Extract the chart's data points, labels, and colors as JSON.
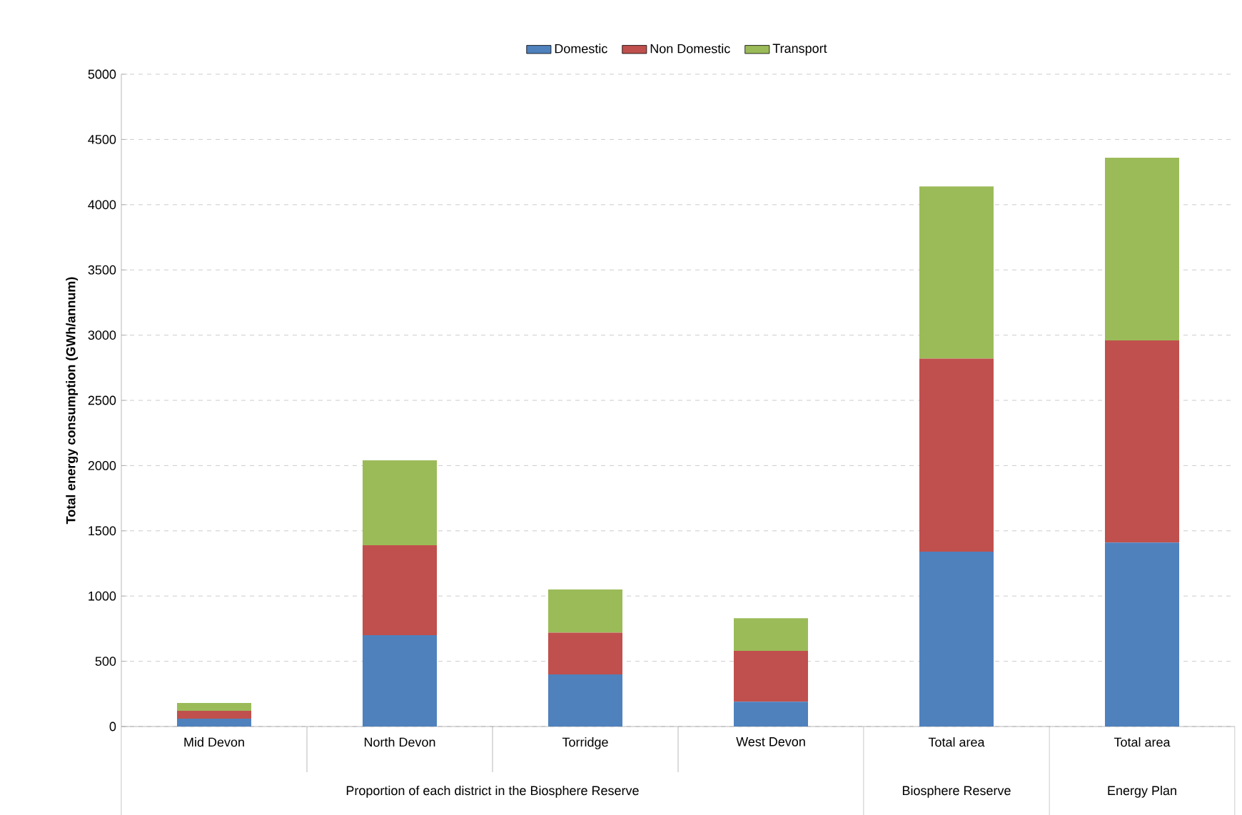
{
  "chart_data": {
    "type": "bar",
    "stacked": true,
    "ylabel": "Total energy consumption (GWh/annum)",
    "categories": [
      "Mid Devon",
      "North Devon",
      "Torridge",
      "West Devon",
      "Total area",
      "Total area"
    ],
    "series": [
      {
        "name": "Domestic",
        "color": "#4f81bd",
        "values": [
          60,
          700,
          400,
          190,
          1340,
          1410
        ]
      },
      {
        "name": "Non Domestic",
        "color": "#c0504d",
        "values": [
          60,
          690,
          320,
          390,
          1480,
          1550
        ]
      },
      {
        "name": "Transport",
        "color": "#9bbb59",
        "values": [
          60,
          650,
          330,
          250,
          1320,
          1400
        ]
      }
    ],
    "ylim": [
      0,
      5000
    ],
    "yticks": [
      0,
      500,
      1000,
      1500,
      2000,
      2500,
      3000,
      3500,
      4000,
      4500,
      5000
    ],
    "grid": "y",
    "legend": "top",
    "annotations": [
      "Proportion of each district in the Biosphere Reserve",
      "Biosphere Reserve",
      "Energy Plan"
    ]
  }
}
